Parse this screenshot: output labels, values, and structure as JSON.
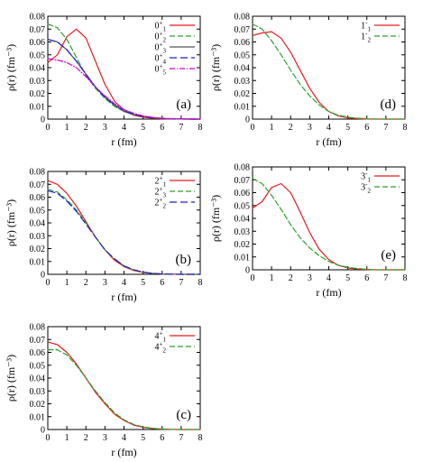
{
  "colors": {
    "red": "#e41a1c",
    "green": "#2ca02c",
    "gray": "#555555",
    "blue": "#1f1fc8",
    "magenta": "#d000d0"
  },
  "chart_data": [
    {
      "id": "a",
      "type": "line",
      "panel_label": "(a)",
      "xlabel": "r (fm)",
      "ylabel": "ρ(r)  (fm⁻³)",
      "xlim": [
        0,
        8
      ],
      "ylim": [
        0,
        0.08
      ],
      "x_ticks": [
        0,
        1,
        2,
        3,
        4,
        5,
        6,
        7,
        8
      ],
      "y_ticks": [
        0,
        0.01,
        0.02,
        0.03,
        0.04,
        0.05,
        0.06,
        0.07,
        0.08
      ],
      "legend_position": "top-right",
      "x": [
        0,
        0.5,
        1,
        1.5,
        2,
        2.5,
        3,
        3.5,
        4,
        4.5,
        5,
        5.5,
        6,
        6.5,
        7,
        7.5,
        8
      ],
      "series": [
        {
          "name": "0+1",
          "label": "0",
          "sup": "+",
          "sub": "1",
          "color": "red",
          "dash": "solid",
          "values": [
            0.044,
            0.05,
            0.064,
            0.07,
            0.063,
            0.045,
            0.027,
            0.014,
            0.007,
            0.003,
            0.0015,
            0.0007,
            0.0003,
            0.0001,
            5e-05,
            0,
            0
          ]
        },
        {
          "name": "0+2",
          "label": "0",
          "sup": "+",
          "sub": "2",
          "color": "green",
          "dash": "6,3",
          "values": [
            0.074,
            0.071,
            0.062,
            0.048,
            0.034,
            0.024,
            0.016,
            0.01,
            0.006,
            0.0035,
            0.002,
            0.001,
            0.0005,
            0.0002,
            0.0001,
            0,
            0
          ]
        },
        {
          "name": "0+3",
          "label": "0",
          "sup": "+",
          "sub": "3",
          "color": "gray",
          "dash": "solid",
          "values": [
            0.062,
            0.06,
            0.054,
            0.045,
            0.035,
            0.025,
            0.017,
            0.011,
            0.006,
            0.0035,
            0.002,
            0.001,
            0.0005,
            0.0002,
            0.0001,
            0,
            0
          ]
        },
        {
          "name": "0+4",
          "label": "0",
          "sup": "+",
          "sub": "4",
          "color": "blue",
          "dash": "8,4",
          "values": [
            0.062,
            0.06,
            0.054,
            0.045,
            0.035,
            0.025,
            0.017,
            0.011,
            0.0065,
            0.004,
            0.0022,
            0.0011,
            0.0005,
            0.0002,
            0.0001,
            0,
            0
          ]
        },
        {
          "name": "0+5",
          "label": "0",
          "sup": "+",
          "sub": "5",
          "color": "magenta",
          "dash": "6,2,1,2",
          "values": [
            0.047,
            0.046,
            0.044,
            0.04,
            0.033,
            0.025,
            0.018,
            0.012,
            0.0075,
            0.0045,
            0.0025,
            0.0013,
            0.0006,
            0.0003,
            0.0001,
            0,
            0
          ]
        }
      ]
    },
    {
      "id": "b",
      "type": "line",
      "panel_label": "(b)",
      "xlabel": "r (fm)",
      "ylabel": "ρ(r)  (fm⁻³)",
      "xlim": [
        0,
        8
      ],
      "ylim": [
        0,
        0.08
      ],
      "x_ticks": [
        0,
        1,
        2,
        3,
        4,
        5,
        6,
        7,
        8
      ],
      "y_ticks": [
        0,
        0.01,
        0.02,
        0.03,
        0.04,
        0.05,
        0.06,
        0.07,
        0.08
      ],
      "legend_position": "top-right",
      "x": [
        0,
        0.5,
        1,
        1.5,
        2,
        2.5,
        3,
        3.5,
        4,
        4.5,
        5,
        5.5,
        6,
        6.5,
        7,
        7.5,
        8
      ],
      "series": [
        {
          "name": "2+1",
          "label": "2",
          "sup": "+",
          "sub": "1",
          "color": "red",
          "dash": "solid",
          "values": [
            0.073,
            0.07,
            0.063,
            0.053,
            0.041,
            0.029,
            0.019,
            0.011,
            0.006,
            0.003,
            0.0015,
            0.0007,
            0.0003,
            0.0001,
            0,
            0,
            0
          ]
        },
        {
          "name": "2+3",
          "label": "2",
          "sup": "+",
          "sub": "3",
          "color": "green",
          "dash": "6,3",
          "values": [
            0.066,
            0.064,
            0.058,
            0.05,
            0.04,
            0.029,
            0.019,
            0.012,
            0.0065,
            0.0035,
            0.0017,
            0.0008,
            0.0003,
            0.0001,
            0,
            0,
            0
          ]
        },
        {
          "name": "2+2",
          "label": "2",
          "sup": "+",
          "sub": "2",
          "color": "blue",
          "dash": "8,4",
          "values": [
            0.065,
            0.063,
            0.057,
            0.049,
            0.039,
            0.029,
            0.019,
            0.012,
            0.0065,
            0.0035,
            0.0017,
            0.0008,
            0.0003,
            0.0001,
            0,
            0,
            0
          ]
        }
      ]
    },
    {
      "id": "c",
      "type": "line",
      "panel_label": "(c)",
      "xlabel": "r (fm)",
      "ylabel": "ρ(r)  (fm⁻³)",
      "xlim": [
        0,
        8
      ],
      "ylim": [
        0,
        0.08
      ],
      "x_ticks": [
        0,
        1,
        2,
        3,
        4,
        5,
        6,
        7,
        8
      ],
      "y_ticks": [
        0,
        0.01,
        0.02,
        0.03,
        0.04,
        0.05,
        0.06,
        0.07,
        0.08
      ],
      "legend_position": "top-right",
      "x": [
        0,
        0.5,
        1,
        1.5,
        2,
        2.5,
        3,
        3.5,
        4,
        4.5,
        5,
        5.5,
        6,
        6.5,
        7,
        7.5,
        8
      ],
      "series": [
        {
          "name": "4+1",
          "label": "4",
          "sup": "+",
          "sub": "1",
          "color": "red",
          "dash": "solid",
          "values": [
            0.068,
            0.066,
            0.06,
            0.051,
            0.04,
            0.029,
            0.02,
            0.012,
            0.007,
            0.0035,
            0.0017,
            0.0008,
            0.0003,
            0.0001,
            0,
            0,
            0
          ]
        },
        {
          "name": "4+2",
          "label": "4",
          "sup": "+",
          "sub": "2",
          "color": "green",
          "dash": "6,3",
          "values": [
            0.062,
            0.062,
            0.058,
            0.05,
            0.04,
            0.03,
            0.021,
            0.013,
            0.0075,
            0.004,
            0.002,
            0.0009,
            0.0004,
            0.0001,
            0,
            0,
            0
          ]
        }
      ]
    },
    {
      "id": "d",
      "type": "line",
      "panel_label": "(d)",
      "xlabel": "r (fm)",
      "ylabel": "ρ(r)  (fm⁻³)",
      "xlim": [
        0,
        8
      ],
      "ylim": [
        0,
        0.08
      ],
      "x_ticks": [
        0,
        1,
        2,
        3,
        4,
        5,
        6,
        7,
        8
      ],
      "y_ticks": [
        0,
        0.01,
        0.02,
        0.03,
        0.04,
        0.05,
        0.06,
        0.07,
        0.08
      ],
      "legend_position": "top-right",
      "x": [
        0,
        0.5,
        1,
        1.5,
        2,
        2.5,
        3,
        3.5,
        4,
        4.5,
        5,
        5.5,
        6,
        6.5,
        7,
        7.5,
        8
      ],
      "series": [
        {
          "name": "1-1",
          "label": "1",
          "sup": "-",
          "sub": "1",
          "color": "red",
          "dash": "solid",
          "values": [
            0.065,
            0.067,
            0.068,
            0.063,
            0.052,
            0.038,
            0.024,
            0.013,
            0.006,
            0.0025,
            0.001,
            0.0004,
            0.0001,
            0,
            0,
            0,
            0
          ]
        },
        {
          "name": "1-2",
          "label": "1",
          "sup": "-",
          "sub": "2",
          "color": "green",
          "dash": "6,3",
          "values": [
            0.074,
            0.07,
            0.061,
            0.05,
            0.038,
            0.027,
            0.018,
            0.011,
            0.006,
            0.003,
            0.0015,
            0.0007,
            0.0003,
            0.0001,
            0,
            0,
            0
          ]
        }
      ]
    },
    {
      "id": "e",
      "type": "line",
      "panel_label": "(e)",
      "xlabel": "r (fm)",
      "ylabel": "ρ(r)  (fm⁻³)",
      "xlim": [
        0,
        8
      ],
      "ylim": [
        0,
        0.08
      ],
      "x_ticks": [
        0,
        1,
        2,
        3,
        4,
        5,
        6,
        7,
        8
      ],
      "y_ticks": [
        0,
        0.01,
        0.02,
        0.03,
        0.04,
        0.05,
        0.06,
        0.07,
        0.08
      ],
      "legend_position": "top-right",
      "x": [
        0,
        0.5,
        1,
        1.5,
        2,
        2.5,
        3,
        3.5,
        4,
        4.5,
        5,
        5.5,
        6,
        6.5,
        7,
        7.5,
        8
      ],
      "series": [
        {
          "name": "3-1",
          "label": "3",
          "sup": "-",
          "sub": "1",
          "color": "red",
          "dash": "solid",
          "values": [
            0.048,
            0.053,
            0.064,
            0.067,
            0.06,
            0.045,
            0.029,
            0.016,
            0.008,
            0.0035,
            0.0015,
            0.0006,
            0.0002,
            0,
            0,
            0,
            0
          ]
        },
        {
          "name": "3-2",
          "label": "3",
          "sup": "-",
          "sub": "2",
          "color": "green",
          "dash": "6,3",
          "values": [
            0.071,
            0.067,
            0.058,
            0.047,
            0.035,
            0.025,
            0.017,
            0.011,
            0.0065,
            0.0035,
            0.002,
            0.001,
            0.0004,
            0.0001,
            0,
            0,
            0
          ]
        }
      ]
    }
  ]
}
